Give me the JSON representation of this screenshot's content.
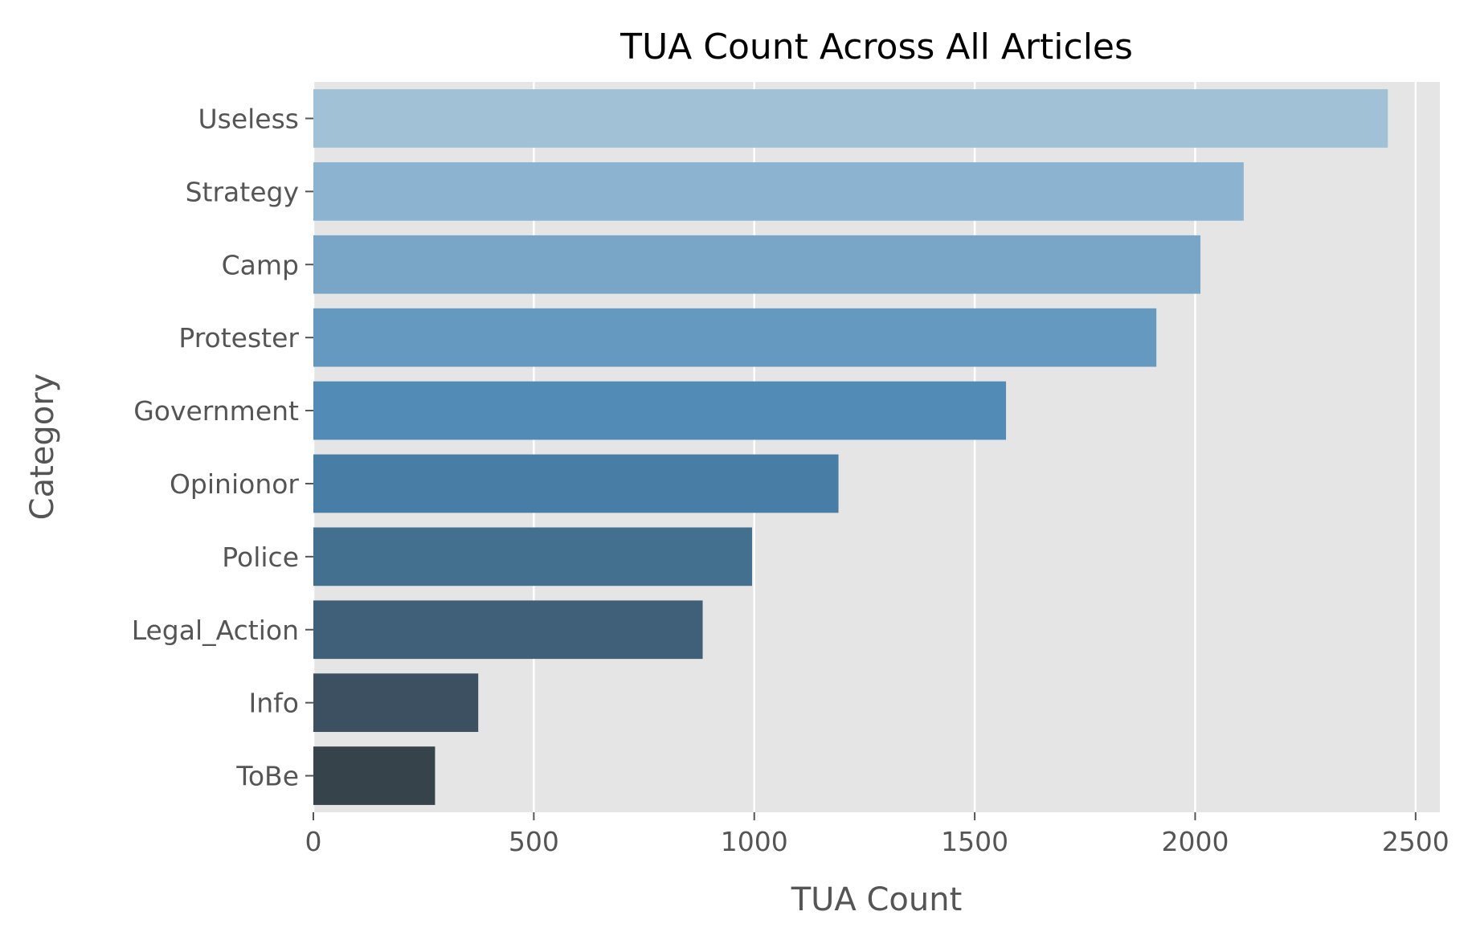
{
  "chart_data": {
    "type": "bar",
    "orientation": "horizontal",
    "title": "TUA Count Across All Articles",
    "xlabel": "TUA Count",
    "ylabel": "Category",
    "categories": [
      "Useless",
      "Strategy",
      "Camp",
      "Protester",
      "Government",
      "Opinionor",
      "Police",
      "Legal_Action",
      "Info",
      "ToBe"
    ],
    "values": [
      2437,
      2110,
      2012,
      1912,
      1571,
      1191,
      995,
      883,
      374,
      276
    ],
    "xlim": [
      0,
      2555
    ],
    "xticks": [
      0,
      500,
      1000,
      1500,
      2000,
      2500
    ],
    "grid": true,
    "background": "#e5e5e5",
    "gridline_color": "#ffffff",
    "bar_colors": [
      "#a0c1d6",
      "#8cb3cf",
      "#79a6c7",
      "#6599bf",
      "#528bb5",
      "#487ea5",
      "#43708f",
      "#405f79",
      "#3c5062",
      "#37434a"
    ]
  }
}
